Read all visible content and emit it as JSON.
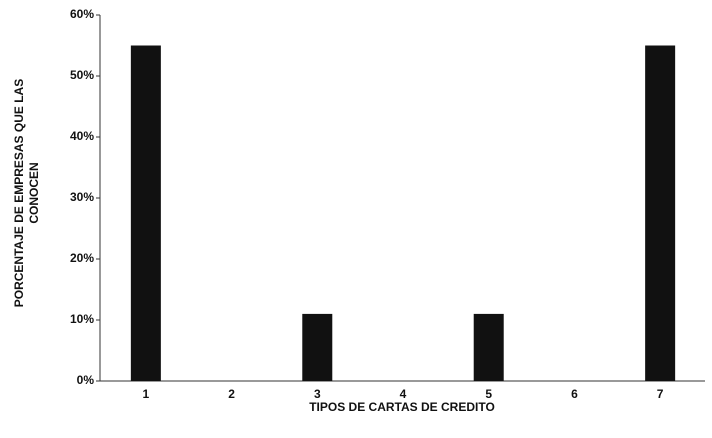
{
  "chart_data": {
    "type": "bar",
    "y_label": "PORCENTAJE DE EMPRESAS QUE LAS CONOCEN",
    "x_label": "TIPOS DE CARTAS DE CREDITO",
    "categories": [
      "1",
      "2",
      "3",
      "4",
      "5",
      "6",
      "7"
    ],
    "values": [
      55,
      0,
      11,
      0,
      11,
      0,
      55
    ],
    "color": "#111111",
    "ylim": [
      0,
      60
    ],
    "yticks": [
      {
        "value": 0,
        "label": "0%"
      },
      {
        "value": 10,
        "label": "10%"
      },
      {
        "value": 20,
        "label": "20%"
      },
      {
        "value": 30,
        "label": "30%"
      },
      {
        "value": 40,
        "label": "40%"
      },
      {
        "value": 50,
        "label": "50%"
      },
      {
        "value": 60,
        "label": "60%"
      }
    ]
  }
}
